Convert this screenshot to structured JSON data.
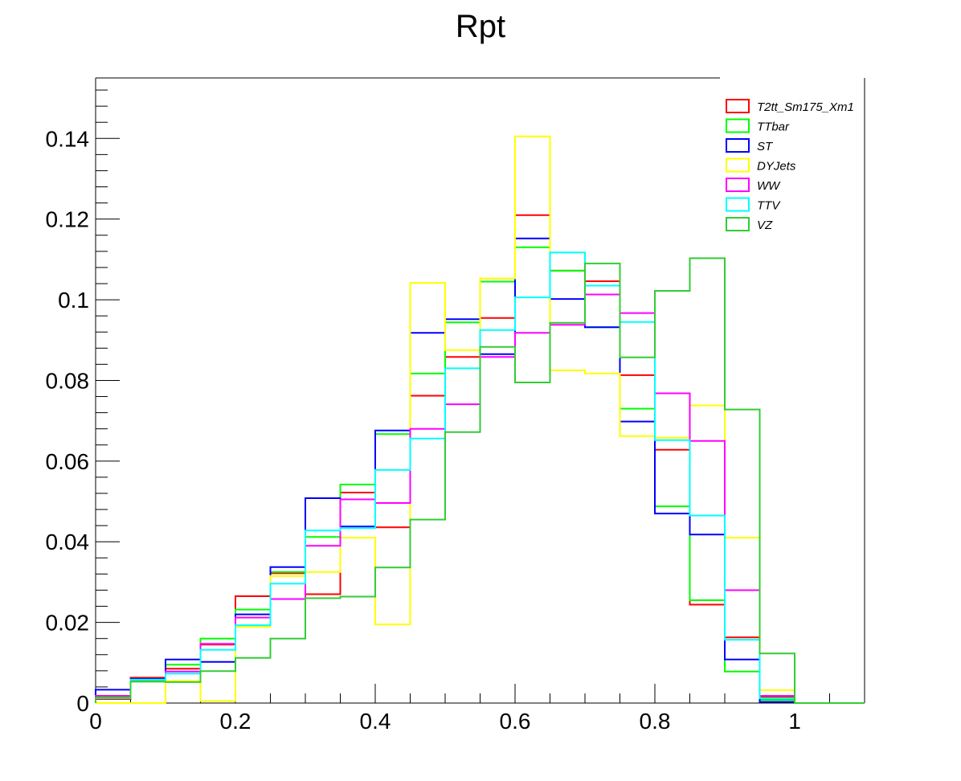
{
  "chart_data": {
    "type": "histogram-step",
    "title": "Rpt",
    "xlabel": "",
    "ylabel": "",
    "xlim": [
      0,
      1.1
    ],
    "ylim": [
      0,
      0.155
    ],
    "grid": false,
    "legend_placement": "top-right",
    "xticks": [
      {
        "value": 0,
        "label": "0"
      },
      {
        "value": 0.2,
        "label": "0.2"
      },
      {
        "value": 0.4,
        "label": "0.4"
      },
      {
        "value": 0.6,
        "label": "0.6"
      },
      {
        "value": 0.8,
        "label": "0.8"
      },
      {
        "value": 1,
        "label": "1"
      }
    ],
    "yticks": [
      {
        "value": 0,
        "label": "0"
      },
      {
        "value": 0.02,
        "label": "0.02"
      },
      {
        "value": 0.04,
        "label": "0.04"
      },
      {
        "value": 0.06,
        "label": "0.06"
      },
      {
        "value": 0.08,
        "label": "0.08"
      },
      {
        "value": 0.1,
        "label": "0.1"
      },
      {
        "value": 0.12,
        "label": "0.12"
      },
      {
        "value": 0.14,
        "label": "0.14"
      }
    ],
    "bin_edges": [
      0,
      0.05,
      0.1,
      0.15,
      0.2,
      0.25,
      0.3,
      0.35,
      0.4,
      0.45,
      0.5,
      0.55,
      0.6,
      0.65,
      0.7,
      0.75,
      0.8,
      0.85,
      0.9,
      0.95,
      1.0,
      1.05,
      1.1
    ],
    "series": [
      {
        "name": "T2tt_Sm175_Xm1",
        "color": "#ff0000",
        "values": [
          0.001,
          0.0063,
          0.0085,
          0.0145,
          0.0265,
          0.0322,
          0.027,
          0.0522,
          0.0436,
          0.0762,
          0.0858,
          0.0955,
          0.121,
          0.1072,
          0.1046,
          0.0813,
          0.0628,
          0.0244,
          0.0163,
          0.0015,
          0,
          0
        ]
      },
      {
        "name": "TTbar",
        "color": "#00ff00",
        "values": [
          0.0015,
          0.0055,
          0.0095,
          0.016,
          0.0232,
          0.0325,
          0.0412,
          0.0542,
          0.0667,
          0.0817,
          0.0944,
          0.1045,
          0.113,
          0.1072,
          0.0932,
          0.073,
          0.0488,
          0.0255,
          0.0078,
          0.0008,
          0,
          0
        ]
      },
      {
        "name": "ST",
        "color": "#0000ff",
        "values": [
          0.0033,
          0.006,
          0.0108,
          0.0102,
          0.022,
          0.0337,
          0.0508,
          0.0438,
          0.0676,
          0.0918,
          0.0952,
          0.0865,
          0.1152,
          0.1002,
          0.0932,
          0.0698,
          0.047,
          0.0418,
          0.0108,
          0.0003,
          0,
          0
        ]
      },
      {
        "name": "DYJets",
        "color": "#ffff00",
        "values": [
          0,
          0,
          0.0055,
          0.0005,
          0.0189,
          0.0315,
          0.0325,
          0.041,
          0.0195,
          0.1042,
          0.0875,
          0.1053,
          0.1405,
          0.0825,
          0.0817,
          0.0662,
          0.0658,
          0.0738,
          0.041,
          0.0032,
          0,
          0
        ]
      },
      {
        "name": "WW",
        "color": "#ff00ff",
        "values": [
          0.0018,
          0.0058,
          0.0078,
          0.0147,
          0.0212,
          0.0258,
          0.039,
          0.0505,
          0.0496,
          0.068,
          0.0741,
          0.0858,
          0.0918,
          0.0938,
          0.1013,
          0.0967,
          0.0768,
          0.065,
          0.028,
          0.0018,
          0,
          0
        ]
      },
      {
        "name": "TTV",
        "color": "#00ffff",
        "values": [
          0.0012,
          0.0058,
          0.0073,
          0.0132,
          0.0193,
          0.0296,
          0.0428,
          0.0434,
          0.0578,
          0.0656,
          0.083,
          0.0925,
          0.1006,
          0.1117,
          0.1035,
          0.0945,
          0.0652,
          0.0465,
          0.0157,
          0.0012,
          0,
          0
        ]
      },
      {
        "name": "VZ",
        "color": "#33cc33",
        "values": [
          0.0013,
          0.0053,
          0.0052,
          0.0079,
          0.0112,
          0.016,
          0.026,
          0.0264,
          0.0336,
          0.0455,
          0.0672,
          0.0883,
          0.0795,
          0.0943,
          0.109,
          0.0857,
          0.1022,
          0.1103,
          0.0728,
          0.0123,
          0,
          0
        ]
      }
    ]
  }
}
